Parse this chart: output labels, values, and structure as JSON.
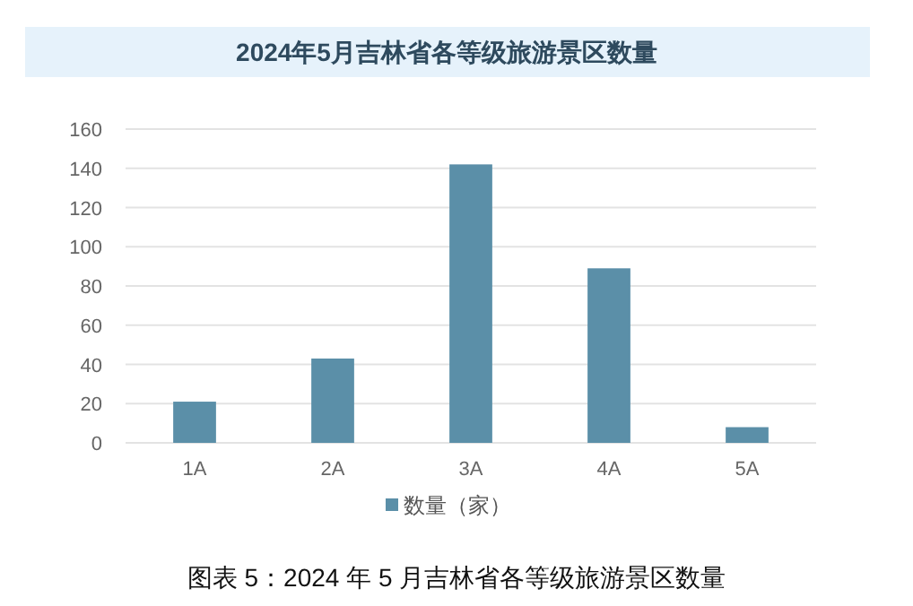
{
  "chart_data": {
    "type": "bar",
    "title": "2024年5月吉林省各等级旅游景区数量",
    "categories": [
      "1A",
      "2A",
      "3A",
      "4A",
      "5A"
    ],
    "series": [
      {
        "name": "数量（家）",
        "color": "#5b8fa8",
        "values": [
          21,
          43,
          142,
          89,
          8
        ]
      }
    ],
    "ylim": [
      0,
      160
    ],
    "yticks": [
      0,
      20,
      40,
      60,
      80,
      100,
      120,
      140,
      160
    ],
    "grid": "y",
    "legend": "bottom",
    "annotations": [
      "图表 5：2024 年 5 月吉林省各等级旅游景区数量"
    ]
  }
}
